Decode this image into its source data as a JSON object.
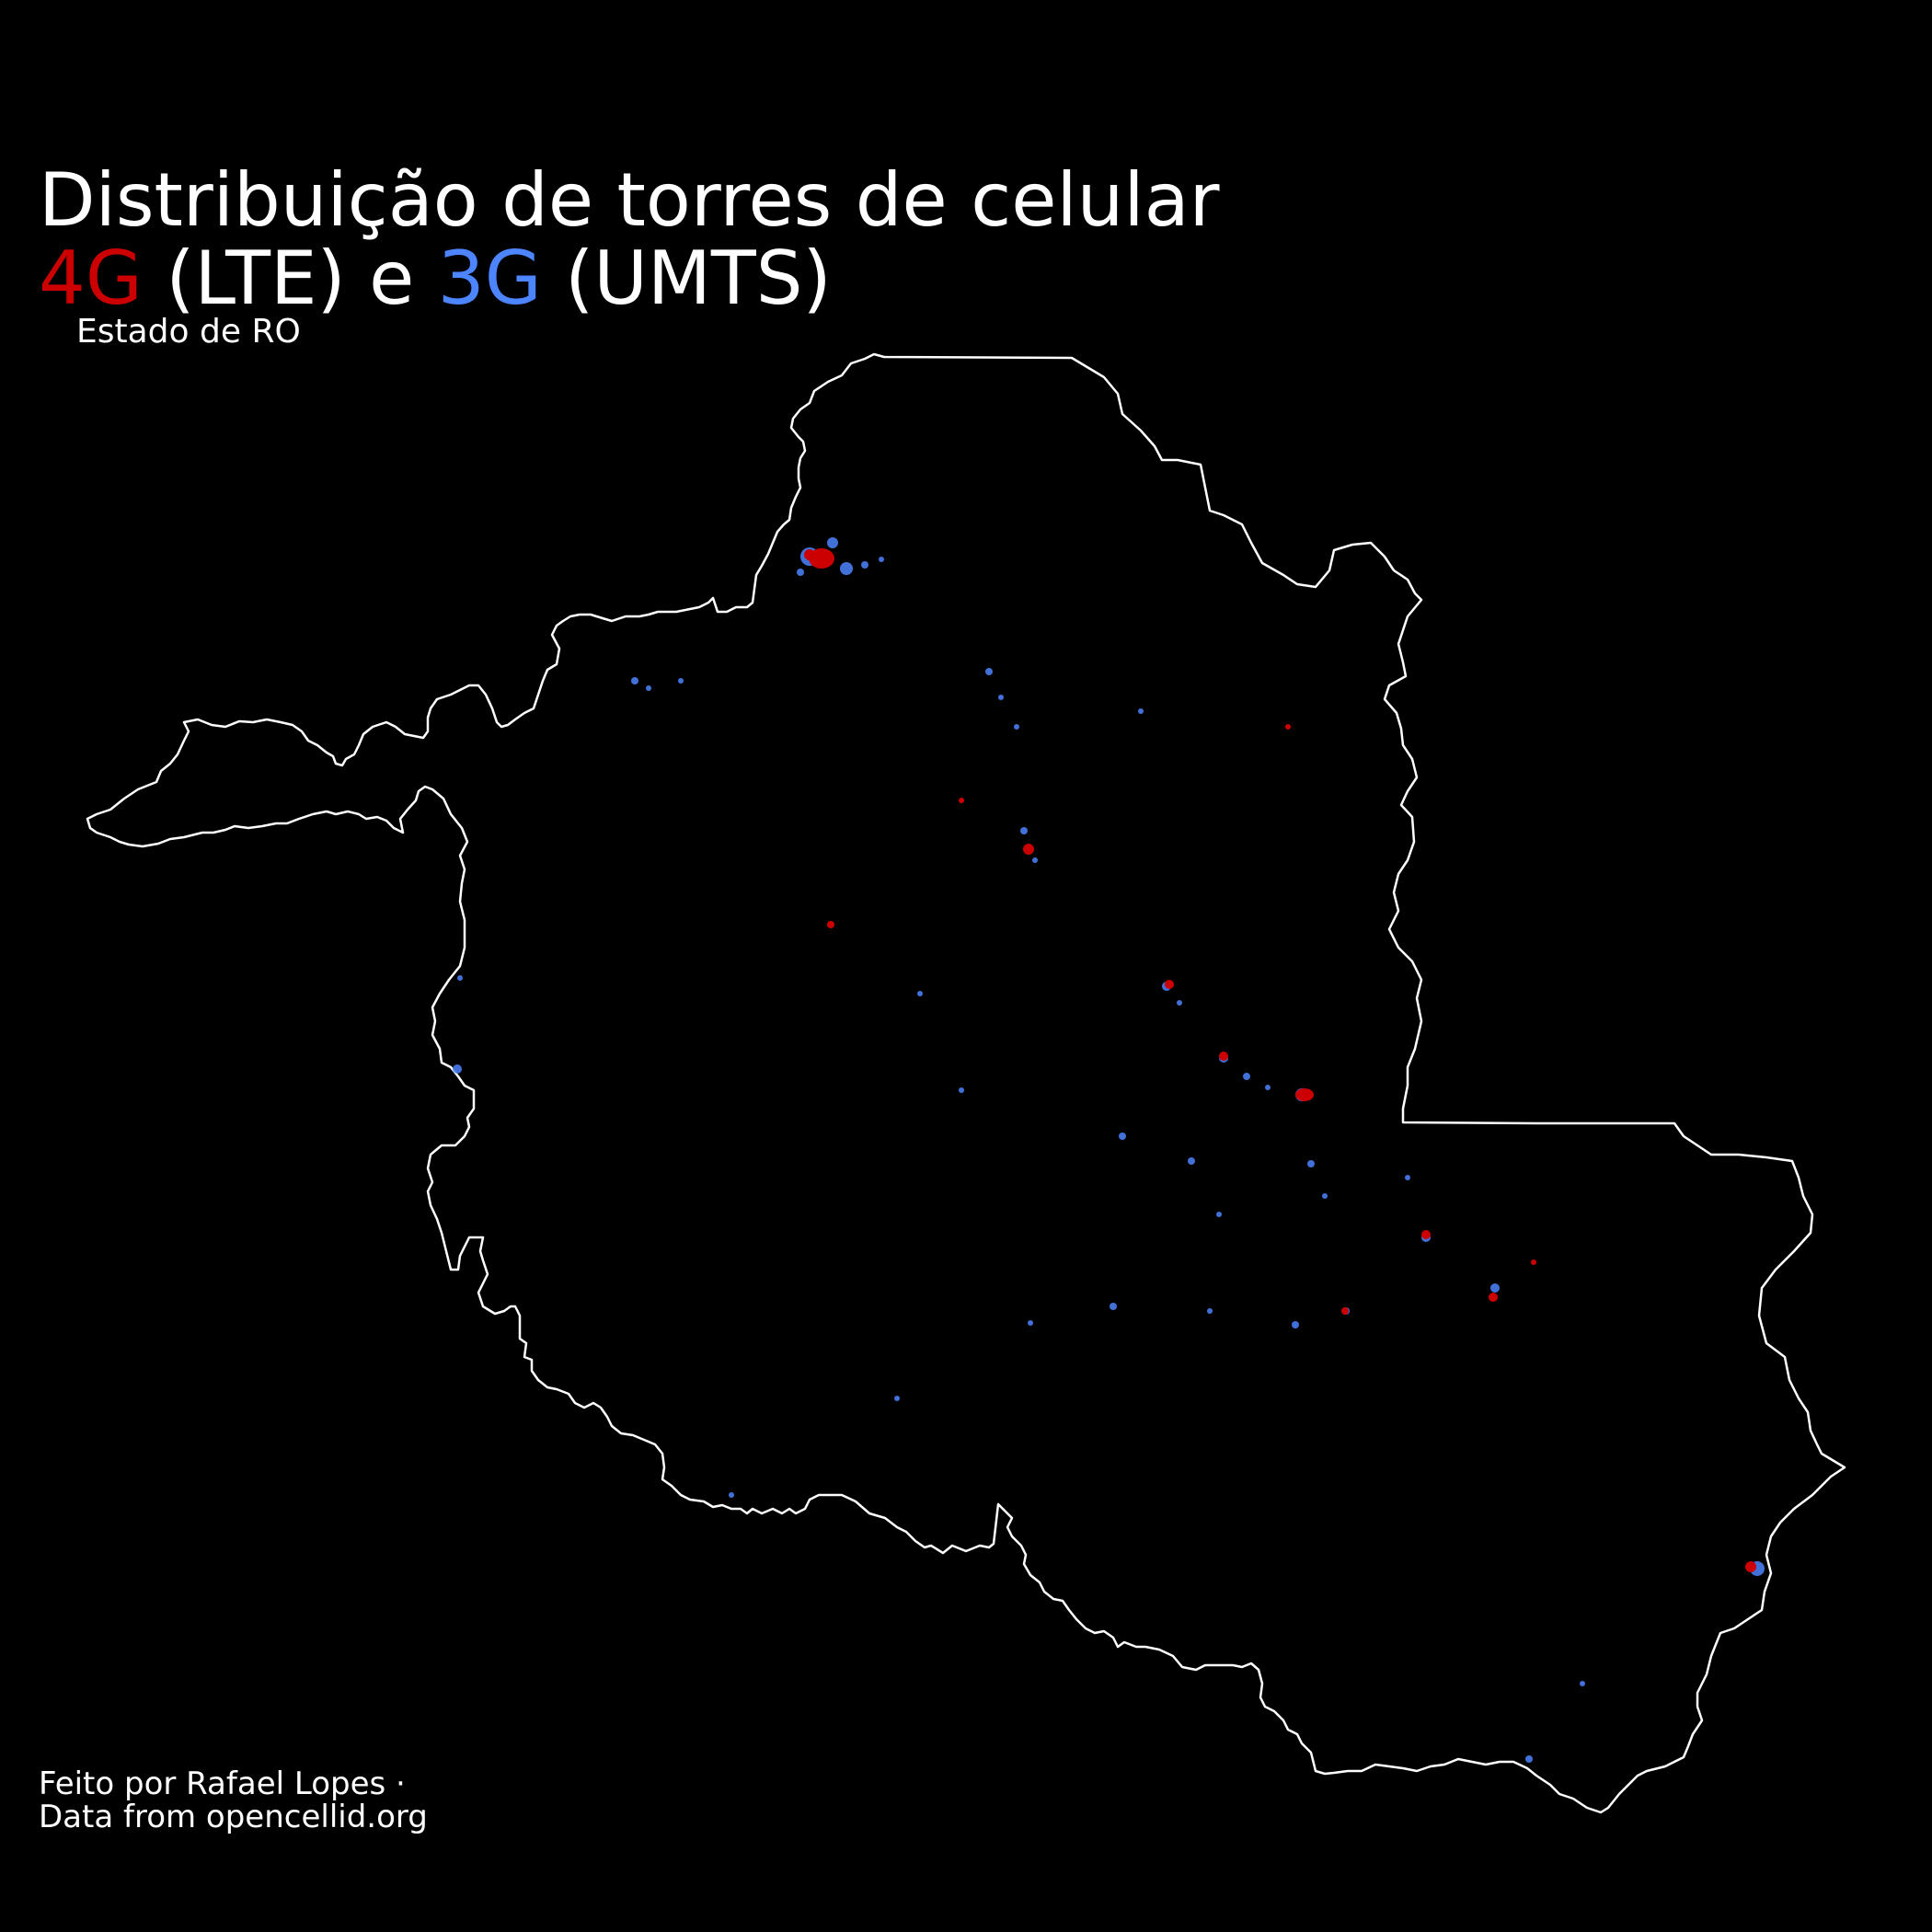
{
  "title": {
    "line1": "Distribuição de torres de celular",
    "lte_label": "4G",
    "lte_paren": " (LTE) e ",
    "umts_label": "3G",
    "umts_paren": " (UMTS)",
    "subtitle": "Estado de RO"
  },
  "caption": {
    "line1": "Feito por Rafael Lopes ·",
    "line2": "Data from opencellid.org"
  },
  "colors": {
    "background": "#000000",
    "text": "#ffffff",
    "lte": "#cc0000",
    "umts": "#4d84ff",
    "border": "#ffffff"
  },
  "map": {
    "region": "Rondônia",
    "layers": [
      "state-border",
      "umts-towers",
      "lte-towers"
    ]
  }
}
